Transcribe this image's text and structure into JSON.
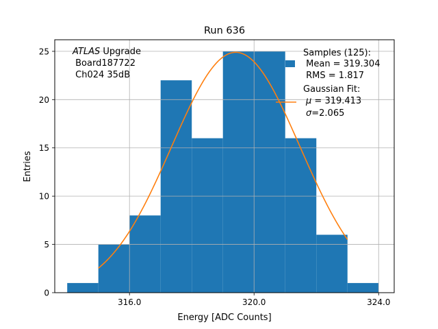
{
  "chart_data": {
    "type": "bar",
    "title": "Run 636",
    "xlabel": "Energy [ADC Counts]",
    "ylabel": "Entries",
    "xlim": [
      313.6,
      324.5
    ],
    "ylim": [
      0,
      26.2
    ],
    "x_ticks": [
      316,
      320,
      324
    ],
    "x_tick_labels": [
      "316.0",
      "320.0",
      "324.0"
    ],
    "y_ticks": [
      0,
      5,
      10,
      15,
      20,
      25
    ],
    "y_tick_labels": [
      "0",
      "5",
      "10",
      "15",
      "20",
      "25"
    ],
    "grid": true,
    "histogram": {
      "name": "Samples (125)",
      "color": "#1f77b4",
      "bins": [
        {
          "start": 314,
          "end": 315,
          "count": 1
        },
        {
          "start": 315,
          "end": 316,
          "count": 5
        },
        {
          "start": 316,
          "end": 317,
          "count": 8
        },
        {
          "start": 317,
          "end": 318,
          "count": 22
        },
        {
          "start": 318,
          "end": 319,
          "count": 16
        },
        {
          "start": 319,
          "end": 320,
          "count": 25
        },
        {
          "start": 320,
          "end": 321,
          "count": 25
        },
        {
          "start": 321,
          "end": 322,
          "count": 16
        },
        {
          "start": 322,
          "end": 323,
          "count": 6
        },
        {
          "start": 323,
          "end": 324,
          "count": 1
        }
      ]
    },
    "fit": {
      "name": "Gaussian Fit",
      "color": "#ff7f0e",
      "mu": 319.413,
      "sigma": 2.065,
      "amplitude": 24.9,
      "x_range": [
        315,
        323
      ]
    },
    "annotation": {
      "line1_italic": "ATLAS",
      "line1_rest": " Upgrade",
      "line2": " Board187722",
      "line3": " Ch024 35dB"
    },
    "legend": {
      "placement": "top-right",
      "hist_lines": [
        "Samples (125):",
        " Mean = 319.304",
        " RMS = 1.817"
      ],
      "fit_line1": "Gaussian Fit:",
      "fit_mu_symbol": "μ",
      "fit_mu_value": " = 319.413",
      "fit_sigma_symbol": "σ",
      "fit_sigma_value": "=2.065"
    }
  }
}
